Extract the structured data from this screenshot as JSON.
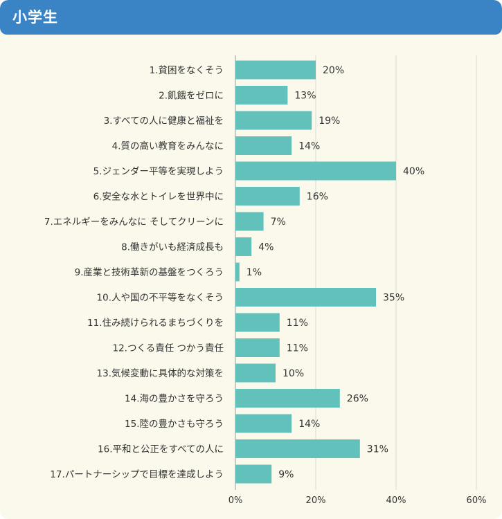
{
  "header": {
    "title": "小学生"
  },
  "chart_data": {
    "type": "bar",
    "orientation": "horizontal",
    "title": "",
    "xlabel": "",
    "ylabel": "",
    "xlim": [
      0,
      60
    ],
    "ticks": [
      "0%",
      "20%",
      "40%",
      "60%"
    ],
    "grid": true,
    "bar_color": "#62c2bb",
    "categories": [
      "1.貧困をなくそう",
      "2.飢餓をゼロに",
      "3.すべての人に健康と福祉を",
      "4.質の高い教育をみんなに",
      "5.ジェンダー平等を実現しよう",
      "6.安全な水とトイレを世界中に",
      "7.エネルギーをみんなに そしてクリーンに",
      "8.働きがいも経済成長も",
      "9.産業と技術革新の基盤をつくろう",
      "10.人や国の不平等をなくそう",
      "11.住み続けられるまちづくりを",
      "12.つくる責任 つかう責任",
      "13.気候変動に具体的な対策を",
      "14.海の豊かさを守ろう",
      "15.陸の豊かさも守ろう",
      "16.平和と公正をすべての人に",
      "17.パートナーシップで目標を達成しよう"
    ],
    "values": [
      20,
      13,
      19,
      14,
      40,
      16,
      7,
      4,
      1,
      35,
      11,
      11,
      10,
      26,
      14,
      31,
      9
    ],
    "value_labels": [
      "20%",
      "13%",
      "19%",
      "14%",
      "40%",
      "16%",
      "7%",
      "4%",
      "1%",
      "35%",
      "11%",
      "11%",
      "10%",
      "26%",
      "14%",
      "31%",
      "9%"
    ]
  }
}
